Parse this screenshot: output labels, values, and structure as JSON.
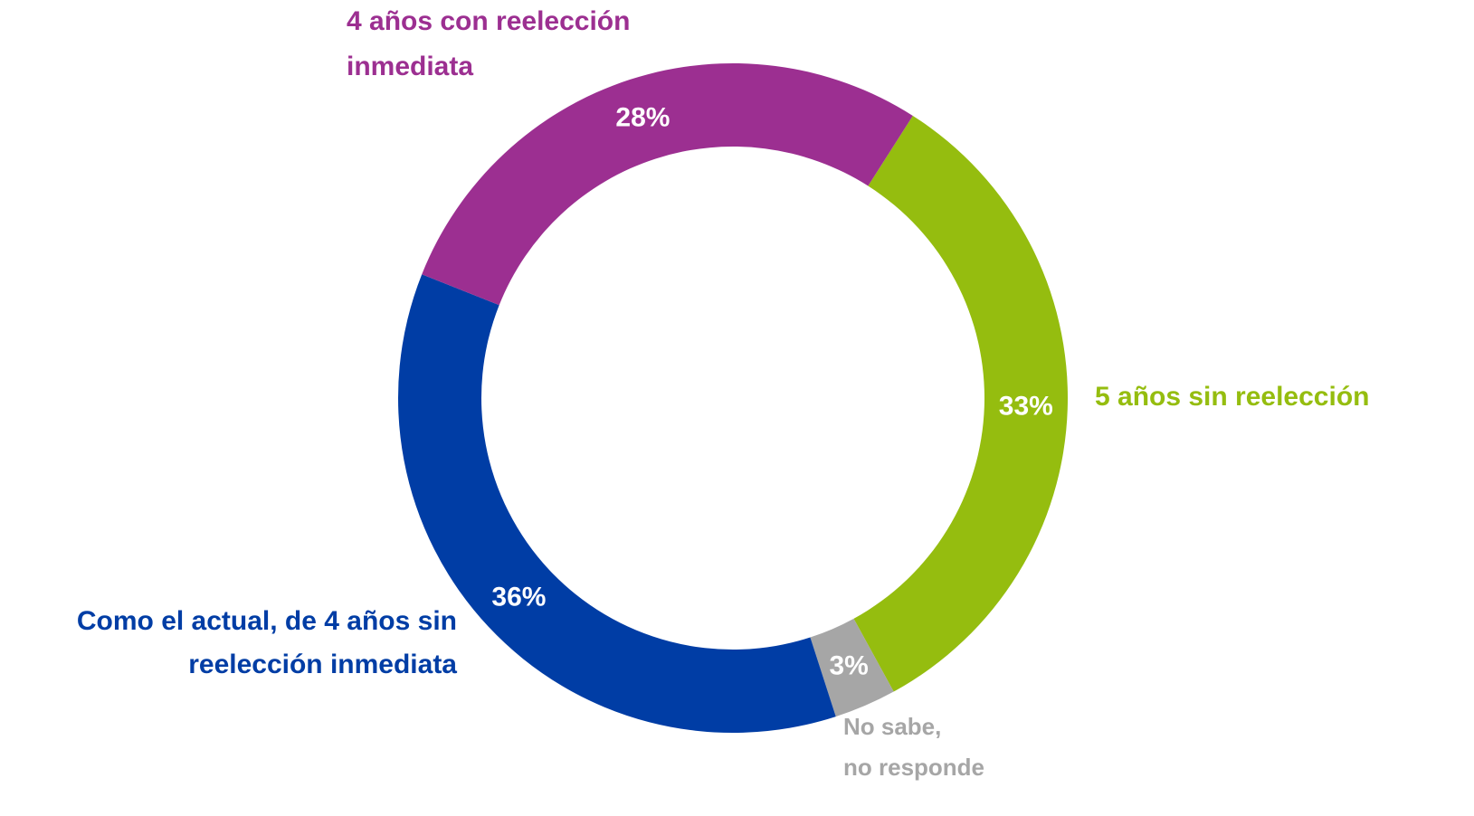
{
  "chart_data": {
    "type": "donut",
    "categories": [
      [
        "5 años sin reelección"
      ],
      [
        "No sabe,",
        "no responde"
      ],
      [
        "Como el actual, de 4 años sin",
        "reelección inmediata"
      ],
      [
        "4 años con reelección",
        "inmediata"
      ]
    ],
    "values": [
      33,
      3,
      36,
      28
    ],
    "value_labels": [
      "33%",
      "3%",
      "36%",
      "28%"
    ],
    "colors": [
      "#95bd0f",
      "#a6a6a6",
      "#003da5",
      "#9c2f91"
    ]
  }
}
